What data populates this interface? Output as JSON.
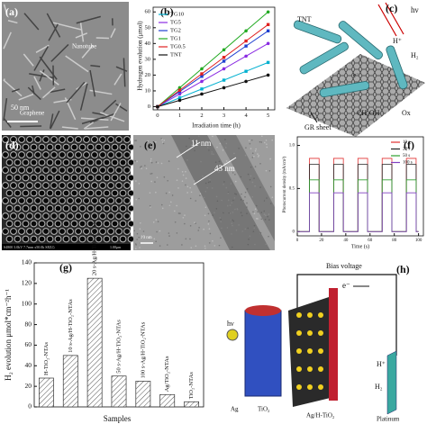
{
  "chart_data": [
    {
      "type": "line",
      "panel_label": "(b)",
      "x_label": "Irradiation time (h)",
      "y_label": "Hydrogen evolution (μmol)",
      "x": [
        0,
        1,
        2,
        3,
        4,
        5
      ],
      "xlim": [
        -0.2,
        5.3
      ],
      "xticks": [
        0,
        1,
        2,
        3,
        4,
        5
      ],
      "ylim": [
        -2,
        63
      ],
      "yticks": [
        0,
        10,
        20,
        30,
        40,
        50,
        60
      ],
      "markers": true,
      "series": [
        {
          "name": "TG10",
          "color": "#00b0d0",
          "values": [
            0,
            5.6,
            11.2,
            16.8,
            22.4,
            28
          ]
        },
        {
          "name": "TG5",
          "color": "#8a2be2",
          "values": [
            0,
            8,
            16,
            24,
            32,
            40
          ]
        },
        {
          "name": "TG2",
          "color": "#1f3fd0",
          "values": [
            0,
            9.6,
            19.2,
            28.8,
            38.4,
            48
          ]
        },
        {
          "name": "TG1",
          "color": "#22aa22",
          "values": [
            0,
            12,
            24,
            36,
            48,
            60
          ]
        },
        {
          "name": "TG0.5",
          "color": "#e02020",
          "values": [
            0,
            10.4,
            20.8,
            31.2,
            41.6,
            52
          ]
        },
        {
          "name": "TNT",
          "color": "#111111",
          "values": [
            0,
            4,
            8,
            12,
            16,
            20
          ]
        }
      ]
    },
    {
      "type": "line",
      "panel_label": "(f)",
      "x_label": "Time (s)",
      "y_label": "Photocurrent density (mA/cm²)",
      "x": [
        0,
        10,
        10,
        18,
        18,
        30,
        30,
        38,
        38,
        50,
        50,
        58,
        58,
        70,
        70,
        78,
        78,
        90,
        90,
        98,
        98,
        100
      ],
      "xlim": [
        0,
        104
      ],
      "xticks": [
        0,
        20,
        40,
        60,
        80,
        100
      ],
      "ylim": [
        -0.05,
        1.1
      ],
      "yticks": [
        0,
        0.5,
        {
          "value": 1,
          "label": "1.0"
        }
      ],
      "markers": false,
      "series": [
        {
          "name": "10 s",
          "color": "#e03030",
          "values": [
            0,
            0,
            0.85,
            0.85,
            0,
            0,
            0.85,
            0.85,
            0,
            0,
            0.85,
            0.85,
            0,
            0,
            0.85,
            0.85,
            0,
            0,
            0.85,
            0.85,
            0,
            0
          ]
        },
        {
          "name": "20 s",
          "color": "#222222",
          "values": [
            0,
            0,
            0.78,
            0.78,
            0,
            0,
            0.78,
            0.78,
            0,
            0,
            0.78,
            0.78,
            0,
            0,
            0.78,
            0.78,
            0,
            0,
            0.78,
            0.78,
            0,
            0
          ]
        },
        {
          "name": "50 s",
          "color": "#30a030",
          "values": [
            0,
            0,
            0.6,
            0.6,
            0,
            0,
            0.6,
            0.6,
            0,
            0,
            0.6,
            0.6,
            0,
            0,
            0.6,
            0.6,
            0,
            0,
            0.6,
            0.6,
            0,
            0
          ]
        },
        {
          "name": "100 s",
          "color": "#8040c0",
          "values": [
            0,
            0,
            0.45,
            0.45,
            0,
            0,
            0.45,
            0.45,
            0,
            0,
            0.45,
            0.45,
            0,
            0,
            0.45,
            0.45,
            0,
            0,
            0.45,
            0.45,
            0,
            0
          ]
        }
      ]
    },
    {
      "type": "bar",
      "panel_label": "(g)",
      "x_label": "Samples",
      "y_label": "H₂ evolution μmol*cm⁻²h⁻¹",
      "categories": [
        "H-TiO₂-NTAs",
        "10 s-Ag/H-TiO₂-NTAs",
        "20 s-Ag/H-TiO₂-NTAs",
        "50 s-Ag/H-TiO₂-NTAs",
        "100 s-Ag/H-TiO₂-NTAs",
        "Ag/TiO₂-NTAs",
        "TiO₂-NTAs"
      ],
      "values": [
        28,
        50,
        125,
        30,
        25,
        12,
        5
      ],
      "color": "#ffffff",
      "ylim": [
        0,
        140
      ],
      "yticks": [
        0,
        20,
        40,
        60,
        80,
        100,
        120,
        140
      ]
    }
  ],
  "panels": {
    "a": {
      "label": "(a)",
      "nanotube": "Nanotube",
      "graphene": "Graphene",
      "scale": "50 nm"
    },
    "c": {
      "label": "(c)",
      "tnt": "TNT",
      "hv": "hν",
      "h_plus": "H⁺",
      "h2": "H₂",
      "electron": "e⁻",
      "methanol": "CH₃OH",
      "ox": "Ox",
      "sheet": "GR sheet"
    },
    "d": {
      "label": "(d)",
      "info": "S4800 3.0kV 7.7mm x50.0k SE(U)",
      "scale": "1.00μm"
    },
    "e": {
      "label": "(e)",
      "d1": "11 nm",
      "d2": "43 nm",
      "scale": "10 nm"
    },
    "h": {
      "label": "(h)",
      "bias": "Bias voltage",
      "electron": "e⁻",
      "hv": "hν",
      "ag": "Ag",
      "tio2": "TiO₂",
      "electrode": "Ag/H-TiO₂",
      "platinum": "Platinum",
      "h_plus": "H⁺",
      "h2": "H₂"
    }
  }
}
